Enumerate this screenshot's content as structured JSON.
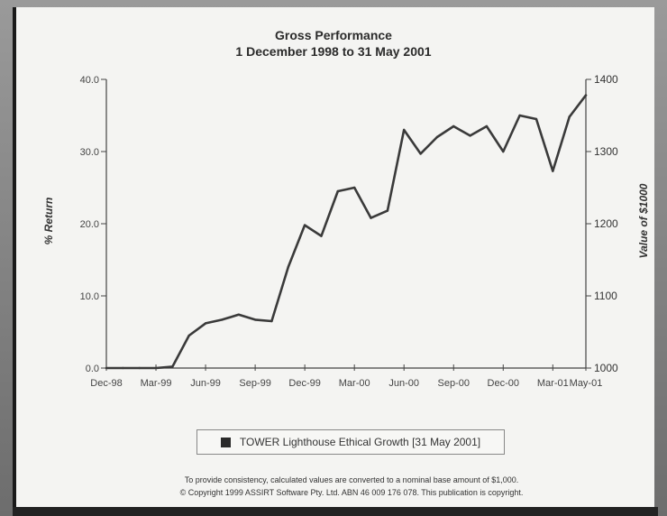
{
  "chart_data": {
    "type": "line",
    "title": "Gross Performance",
    "subtitle": "1 December 1998 to 31 May 2001",
    "ylabel": "% Return",
    "y2label": "Value of $1000",
    "ylim": [
      0,
      40
    ],
    "y2lim": [
      1000,
      1400
    ],
    "yticks": [
      "0.0",
      "10.0",
      "20.0",
      "30.0",
      "40.0"
    ],
    "y2ticks": [
      "1000",
      "1100",
      "1200",
      "1300",
      "1400"
    ],
    "xticks": [
      "Dec-98",
      "Mar-99",
      "Jun-99",
      "Sep-99",
      "Dec-99",
      "Mar-00",
      "Jun-00",
      "Sep-00",
      "Dec-00",
      "Mar-01",
      "May-01"
    ],
    "grid": false,
    "legend_position": "bottom-center",
    "series": [
      {
        "name": "TOWER Lighthouse Ethical Growth [31 May 2001]",
        "color": "#3a3a3a",
        "x": [
          "Dec-98",
          "Jan-99",
          "Feb-99",
          "Mar-99",
          "Apr-99",
          "May-99",
          "Jun-99",
          "Jul-99",
          "Aug-99",
          "Sep-99",
          "Oct-99",
          "Nov-99",
          "Dec-99",
          "Jan-00",
          "Feb-00",
          "Mar-00",
          "Apr-00",
          "May-00",
          "Jun-00",
          "Jul-00",
          "Aug-00",
          "Sep-00",
          "Oct-00",
          "Nov-00",
          "Dec-00",
          "Jan-01",
          "Feb-01",
          "Mar-01",
          "Apr-01",
          "May-01"
        ],
        "values": [
          0.0,
          0.0,
          0.0,
          0.0,
          0.2,
          4.5,
          6.2,
          6.7,
          7.4,
          6.7,
          6.5,
          14.0,
          19.8,
          18.3,
          24.5,
          25.0,
          20.8,
          21.8,
          33.0,
          29.7,
          32.0,
          33.5,
          32.2,
          33.5,
          30.0,
          35.0,
          34.5,
          27.3,
          34.8,
          37.8
        ]
      }
    ]
  },
  "footnotes": {
    "line1": "To provide consistency, calculated values are converted to a nominal base amount of $1,000.",
    "line2": "© Copyright 1999 ASSIRT Software Pty. Ltd. ABN 46 009 176 078. This publication is copyright."
  }
}
